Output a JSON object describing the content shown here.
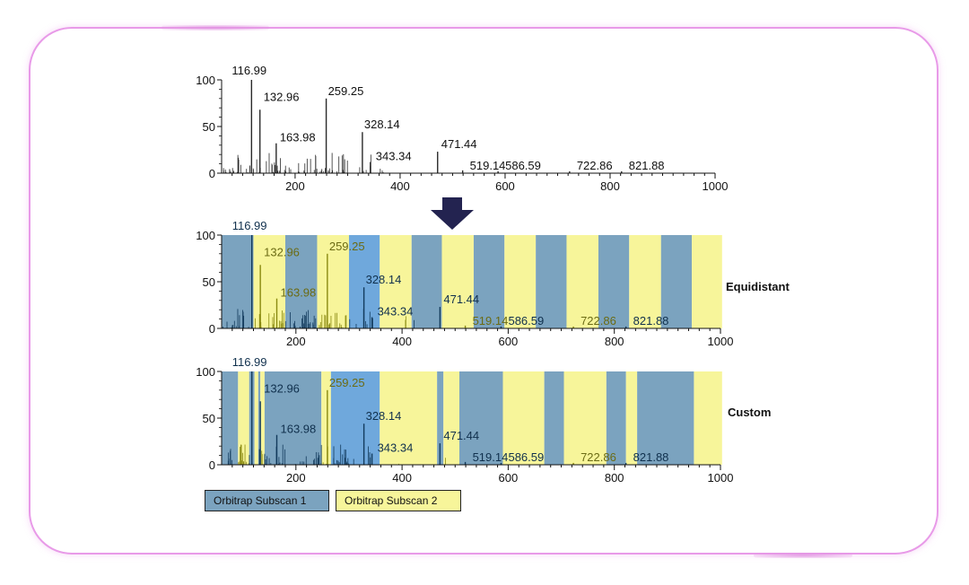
{
  "colors": {
    "subscan1": "#7ba3bf",
    "subscan1_light": "#6fa8dc",
    "subscan2": "#f7f59a",
    "peak_dark": "#2a2a2a",
    "peak_blue": "#123a5c",
    "peak_yellow": "#8a8a10",
    "arrow": "#232350",
    "frame": "#e89ae8"
  },
  "legend": {
    "items": [
      {
        "label": "Orbitrap Subscan 1",
        "color": "#7ba3bf"
      },
      {
        "label": "Orbitrap Subscan 2",
        "color": "#f7f59a"
      }
    ]
  },
  "chart_data": [
    {
      "type": "bar",
      "title": "",
      "xlabel": "",
      "ylabel": "",
      "xlim": [
        60,
        1000
      ],
      "ylim": [
        0,
        100
      ],
      "xticks": [
        200,
        400,
        600,
        800,
        1000
      ],
      "yticks": [
        0,
        50,
        100
      ],
      "peaks": [
        {
          "mz": 116.99,
          "intensity": 100,
          "label": "116.99"
        },
        {
          "mz": 132.96,
          "intensity": 68,
          "label": "132.96"
        },
        {
          "mz": 163.98,
          "intensity": 32,
          "label": "163.98"
        },
        {
          "mz": 259.25,
          "intensity": 80,
          "label": "259.25"
        },
        {
          "mz": 328.14,
          "intensity": 44,
          "label": "328.14"
        },
        {
          "mz": 343.34,
          "intensity": 12,
          "label": "343.34"
        },
        {
          "mz": 471.44,
          "intensity": 23,
          "label": "471.44"
        },
        {
          "mz": 519.14,
          "intensity": 3,
          "label": "519.14"
        },
        {
          "mz": 586.59,
          "intensity": 2,
          "label": "586.59"
        },
        {
          "mz": 722.86,
          "intensity": 2,
          "label": "722.86"
        },
        {
          "mz": 821.88,
          "intensity": 2,
          "label": "821.88"
        }
      ]
    },
    {
      "type": "bar",
      "title": "",
      "annotation": "Equidistant",
      "xlim": [
        60,
        1000
      ],
      "ylim": [
        0,
        100
      ],
      "xticks": [
        200,
        400,
        600,
        800,
        1000
      ],
      "yticks": [
        0,
        50,
        100
      ],
      "windows": [
        {
          "start": 60,
          "end": 120,
          "subscan": 1
        },
        {
          "start": 120,
          "end": 180,
          "subscan": 2
        },
        {
          "start": 180,
          "end": 240,
          "subscan": 1
        },
        {
          "start": 240,
          "end": 300,
          "subscan": 2
        },
        {
          "start": 300,
          "end": 358,
          "subscan": 1,
          "shade": "light"
        },
        {
          "start": 358,
          "end": 418,
          "subscan": 2
        },
        {
          "start": 418,
          "end": 475,
          "subscan": 1
        },
        {
          "start": 475,
          "end": 535,
          "subscan": 2
        },
        {
          "start": 535,
          "end": 593,
          "subscan": 1
        },
        {
          "start": 593,
          "end": 652,
          "subscan": 2
        },
        {
          "start": 652,
          "end": 710,
          "subscan": 1
        },
        {
          "start": 710,
          "end": 770,
          "subscan": 2
        },
        {
          "start": 770,
          "end": 828,
          "subscan": 1
        },
        {
          "start": 828,
          "end": 888,
          "subscan": 2
        },
        {
          "start": 888,
          "end": 946,
          "subscan": 1
        },
        {
          "start": 946,
          "end": 1003,
          "subscan": 2
        }
      ],
      "peaks": [
        {
          "mz": 116.99,
          "intensity": 100,
          "label": "116.99"
        },
        {
          "mz": 132.96,
          "intensity": 68,
          "label": "132.96"
        },
        {
          "mz": 163.98,
          "intensity": 32,
          "label": "163.98"
        },
        {
          "mz": 259.25,
          "intensity": 80,
          "label": "259.25"
        },
        {
          "mz": 328.14,
          "intensity": 44,
          "label": "328.14"
        },
        {
          "mz": 343.34,
          "intensity": 12,
          "label": "343.34"
        },
        {
          "mz": 471.44,
          "intensity": 23,
          "label": "471.44"
        },
        {
          "mz": 519.14,
          "intensity": 3,
          "label": "519.14"
        },
        {
          "mz": 586.59,
          "intensity": 2,
          "label": "586.59"
        },
        {
          "mz": 722.86,
          "intensity": 2,
          "label": "722.86"
        },
        {
          "mz": 821.88,
          "intensity": 2,
          "label": "821.88"
        }
      ]
    },
    {
      "type": "bar",
      "title": "",
      "annotation": "Custom",
      "xlim": [
        60,
        1000
      ],
      "ylim": [
        0,
        100
      ],
      "xticks": [
        200,
        400,
        600,
        800,
        1000
      ],
      "yticks": [
        0,
        50,
        100
      ],
      "windows": [
        {
          "start": 60,
          "end": 91,
          "subscan": 1
        },
        {
          "start": 91,
          "end": 112,
          "subscan": 2
        },
        {
          "start": 112,
          "end": 122,
          "subscan": 1
        },
        {
          "start": 122,
          "end": 129,
          "subscan": 2
        },
        {
          "start": 129,
          "end": 133,
          "subscan": 1
        },
        {
          "start": 133,
          "end": 141,
          "subscan": 2
        },
        {
          "start": 141,
          "end": 248,
          "subscan": 1
        },
        {
          "start": 248,
          "end": 266,
          "subscan": 2
        },
        {
          "start": 266,
          "end": 358,
          "subscan": 1,
          "shade": "light"
        },
        {
          "start": 358,
          "end": 466,
          "subscan": 2
        },
        {
          "start": 466,
          "end": 478,
          "subscan": 1
        },
        {
          "start": 478,
          "end": 508,
          "subscan": 2
        },
        {
          "start": 508,
          "end": 590,
          "subscan": 1
        },
        {
          "start": 590,
          "end": 668,
          "subscan": 2
        },
        {
          "start": 668,
          "end": 705,
          "subscan": 1
        },
        {
          "start": 705,
          "end": 785,
          "subscan": 2
        },
        {
          "start": 785,
          "end": 822,
          "subscan": 1
        },
        {
          "start": 822,
          "end": 843,
          "subscan": 2
        },
        {
          "start": 843,
          "end": 950,
          "subscan": 1
        },
        {
          "start": 950,
          "end": 1003,
          "subscan": 2
        }
      ],
      "peaks": [
        {
          "mz": 116.99,
          "intensity": 100,
          "label": "116.99"
        },
        {
          "mz": 132.96,
          "intensity": 68,
          "label": "132.96"
        },
        {
          "mz": 163.98,
          "intensity": 32,
          "label": "163.98"
        },
        {
          "mz": 259.25,
          "intensity": 80,
          "label": "259.25"
        },
        {
          "mz": 328.14,
          "intensity": 44,
          "label": "328.14"
        },
        {
          "mz": 343.34,
          "intensity": 12,
          "label": "343.34"
        },
        {
          "mz": 471.44,
          "intensity": 23,
          "label": "471.44"
        },
        {
          "mz": 519.14,
          "intensity": 3,
          "label": "519.14"
        },
        {
          "mz": 586.59,
          "intensity": 2,
          "label": "586.59"
        },
        {
          "mz": 722.86,
          "intensity": 2,
          "label": "722.86"
        },
        {
          "mz": 821.88,
          "intensity": 2,
          "label": "821.88"
        }
      ]
    }
  ]
}
